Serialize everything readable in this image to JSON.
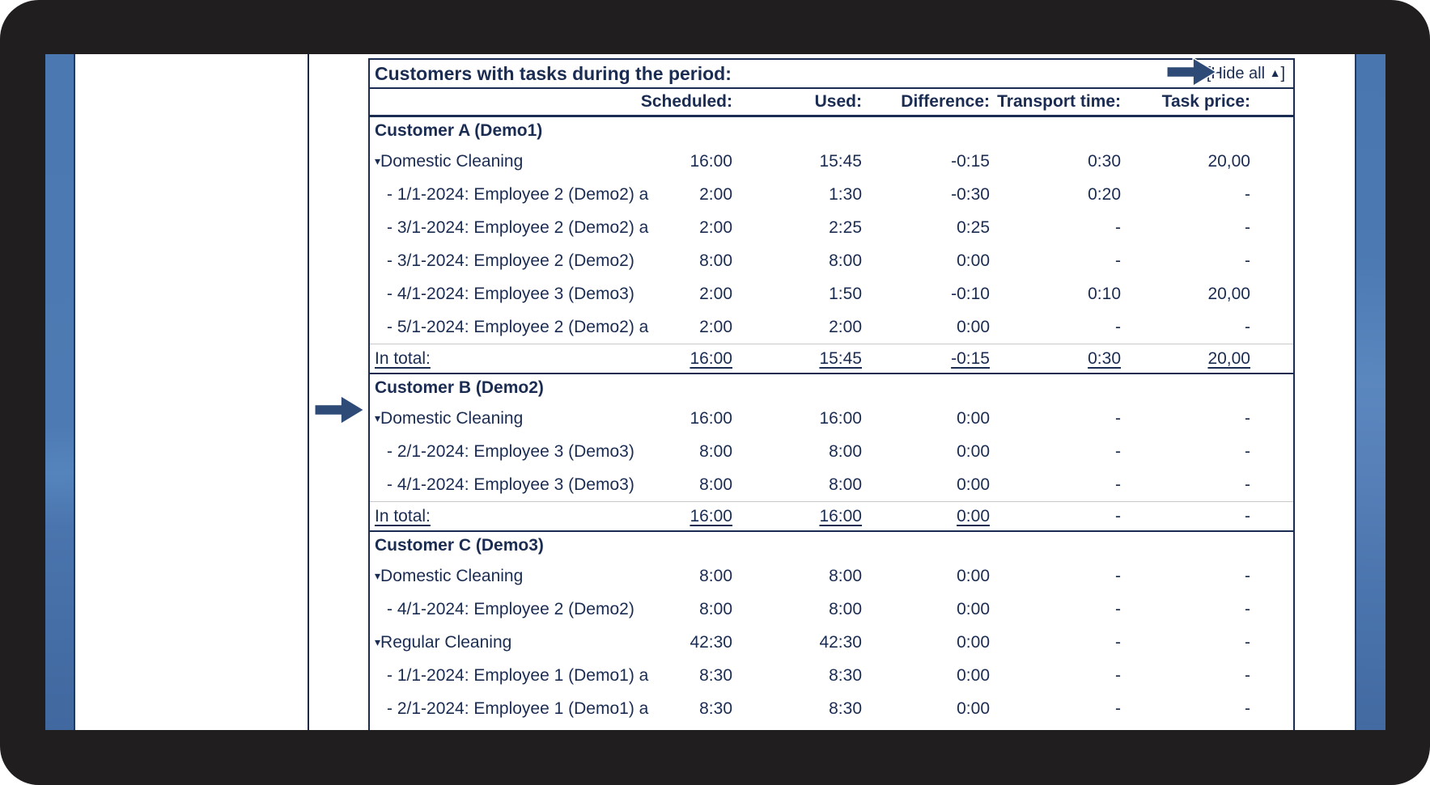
{
  "colors": {
    "navy_text": "#1b2c52",
    "arrow_blue": "#2d4b76",
    "sidebar_blue": "#4c79b2",
    "frame_black": "#211e1f",
    "total_separator_gray": "#c9c9c9"
  },
  "icons": {
    "pointer_arrow": "right-arrow",
    "hide_all_arrow": "collapse-up-triangle",
    "group_arrow": "expand-down-triangle"
  },
  "table": {
    "title": "Customers with tasks during the period:",
    "hide_all": {
      "prefix": "[Hide all ",
      "arrow_glyph": "▲",
      "suffix": "]"
    },
    "collapse_glyph": "▾",
    "total_label": "In total:",
    "columns": [
      "Scheduled:",
      "Used:",
      "Difference:",
      "Transport time:",
      "Task price:"
    ],
    "customers": [
      {
        "name": "Customer A (Demo1)",
        "rows": [
          {
            "kind": "group",
            "label": "Domestic Cleaning",
            "values": [
              "16:00",
              "15:45",
              "-0:15",
              "0:30",
              "20,00"
            ]
          },
          {
            "kind": "detail",
            "label": "- 1/1-2024: Employee 2 (Demo2) a",
            "values": [
              "2:00",
              "1:30",
              "-0:30",
              "0:20",
              "-"
            ]
          },
          {
            "kind": "detail",
            "label": "- 3/1-2024: Employee 2 (Demo2) a",
            "values": [
              "2:00",
              "2:25",
              "0:25",
              "-",
              "-"
            ]
          },
          {
            "kind": "detail",
            "label": "- 3/1-2024: Employee 2 (Demo2)",
            "values": [
              "8:00",
              "8:00",
              "0:00",
              "-",
              "-"
            ]
          },
          {
            "kind": "detail",
            "label": "- 4/1-2024: Employee 3 (Demo3)",
            "values": [
              "2:00",
              "1:50",
              "-0:10",
              "0:10",
              "20,00"
            ]
          },
          {
            "kind": "detail",
            "label": "- 5/1-2024: Employee 2 (Demo2) a",
            "values": [
              "2:00",
              "2:00",
              "0:00",
              "-",
              "-"
            ]
          }
        ],
        "total": {
          "values": [
            "16:00",
            "15:45",
            "-0:15",
            "0:30",
            "20,00"
          ]
        }
      },
      {
        "name": "Customer B (Demo2)",
        "rows": [
          {
            "kind": "group",
            "label": "Domestic Cleaning",
            "values": [
              "16:00",
              "16:00",
              "0:00",
              "-",
              "-"
            ],
            "pointed": true
          },
          {
            "kind": "detail",
            "label": "- 2/1-2024: Employee 3 (Demo3)",
            "values": [
              "8:00",
              "8:00",
              "0:00",
              "-",
              "-"
            ]
          },
          {
            "kind": "detail",
            "label": "- 4/1-2024: Employee 3 (Demo3)",
            "values": [
              "8:00",
              "8:00",
              "0:00",
              "-",
              "-"
            ]
          }
        ],
        "total": {
          "values": [
            "16:00",
            "16:00",
            "0:00",
            "-",
            "-"
          ]
        }
      },
      {
        "name": "Customer C (Demo3)",
        "rows": [
          {
            "kind": "group",
            "label": "Domestic Cleaning",
            "values": [
              "8:00",
              "8:00",
              "0:00",
              "-",
              "-"
            ]
          },
          {
            "kind": "detail",
            "label": "- 4/1-2024: Employee 2 (Demo2)",
            "values": [
              "8:00",
              "8:00",
              "0:00",
              "-",
              "-"
            ]
          },
          {
            "kind": "group",
            "label": "Regular Cleaning",
            "values": [
              "42:30",
              "42:30",
              "0:00",
              "-",
              "-"
            ]
          },
          {
            "kind": "detail",
            "label": "- 1/1-2024: Employee 1 (Demo1) a",
            "values": [
              "8:30",
              "8:30",
              "0:00",
              "-",
              "-"
            ]
          },
          {
            "kind": "detail",
            "label": "- 2/1-2024: Employee 1 (Demo1) a",
            "values": [
              "8:30",
              "8:30",
              "0:00",
              "-",
              "-"
            ]
          }
        ],
        "total": null
      }
    ]
  }
}
